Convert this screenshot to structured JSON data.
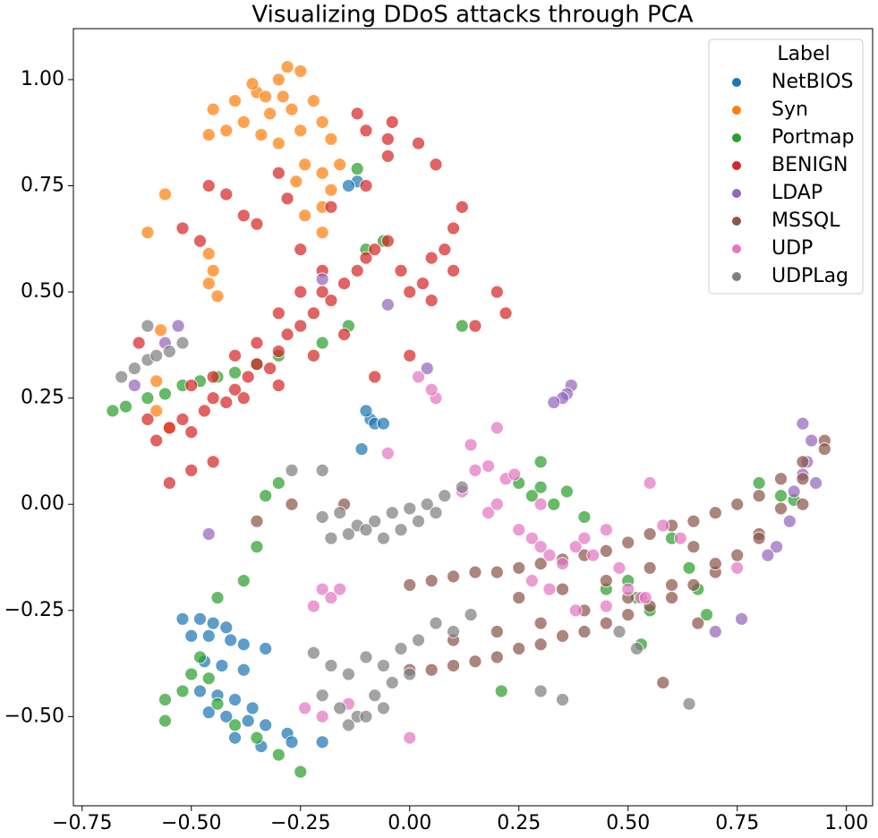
{
  "chart_data": {
    "type": "scatter",
    "title": "Visualizing DDoS attacks through PCA",
    "legend_title": "Label",
    "legend": "upper right",
    "xlim": [
      -0.77,
      1.06
    ],
    "ylim": [
      -0.71,
      1.12
    ],
    "xticks": [
      {
        "value": -0.75,
        "label": "−0.75"
      },
      {
        "value": -0.5,
        "label": "−0.50"
      },
      {
        "value": -0.25,
        "label": "−0.25"
      },
      {
        "value": 0,
        "label": "0.00"
      },
      {
        "value": 0.25,
        "label": "0.25"
      },
      {
        "value": 0.5,
        "label": "0.50"
      },
      {
        "value": 0.75,
        "label": "0.75"
      },
      {
        "value": 1,
        "label": "1.00"
      }
    ],
    "yticks": [
      {
        "value": -0.5,
        "label": "−0.50"
      },
      {
        "value": -0.25,
        "label": "−0.25"
      },
      {
        "value": 0,
        "label": "0.00"
      },
      {
        "value": 0.25,
        "label": "0.25"
      },
      {
        "value": 0.5,
        "label": "0.50"
      },
      {
        "value": 0.75,
        "label": "0.75"
      },
      {
        "value": 1,
        "label": "1.00"
      }
    ],
    "series": [
      {
        "name": "NetBIOS",
        "color": "#1f77b4",
        "x": [
          -0.52,
          -0.48,
          -0.45,
          -0.42,
          -0.5,
          -0.46,
          -0.41,
          -0.38,
          -0.33,
          -0.47,
          -0.43,
          -0.38,
          -0.48,
          -0.44,
          -0.4,
          -0.36,
          -0.46,
          -0.42,
          -0.37,
          -0.33,
          -0.28,
          -0.4,
          -0.34,
          -0.27,
          -0.2,
          -0.09,
          -0.08,
          -0.06,
          -0.1,
          -0.11,
          -0.12,
          -0.14
        ],
        "values": [
          -0.27,
          -0.27,
          -0.28,
          -0.29,
          -0.31,
          -0.31,
          -0.32,
          -0.33,
          -0.34,
          -0.37,
          -0.38,
          -0.39,
          -0.44,
          -0.45,
          -0.46,
          -0.48,
          -0.49,
          -0.5,
          -0.51,
          -0.52,
          -0.54,
          -0.55,
          -0.57,
          -0.56,
          -0.56,
          0.2,
          0.19,
          0.19,
          0.22,
          0.13,
          0.76,
          0.75
        ]
      },
      {
        "name": "Syn",
        "color": "#ff7f0e",
        "x": [
          -0.45,
          -0.4,
          -0.35,
          -0.3,
          -0.28,
          -0.25,
          -0.32,
          -0.27,
          -0.22,
          -0.38,
          -0.34,
          -0.3,
          -0.25,
          -0.2,
          -0.18,
          -0.24,
          -0.2,
          -0.16,
          -0.26,
          -0.2,
          -0.18,
          -0.24,
          -0.2,
          -0.42,
          -0.46,
          -0.56,
          -0.6,
          -0.46,
          -0.46,
          -0.45,
          -0.44,
          -0.58,
          -0.58,
          -0.55,
          -0.57,
          -0.33,
          -0.36,
          -0.29
        ],
        "values": [
          0.93,
          0.95,
          0.97,
          1.0,
          1.03,
          1.02,
          0.92,
          0.93,
          0.95,
          0.9,
          0.87,
          0.85,
          0.88,
          0.9,
          0.86,
          0.8,
          0.78,
          0.8,
          0.76,
          0.7,
          0.74,
          0.68,
          0.64,
          0.88,
          0.87,
          0.73,
          0.64,
          0.59,
          0.52,
          0.55,
          0.49,
          0.29,
          0.22,
          0.18,
          0.41,
          0.96,
          0.99,
          0.96
        ]
      },
      {
        "name": "Portmap",
        "color": "#2ca02c",
        "x": [
          -0.68,
          -0.65,
          -0.6,
          -0.56,
          -0.52,
          -0.48,
          -0.44,
          -0.4,
          -0.35,
          -0.3,
          -0.2,
          -0.14,
          -0.1,
          -0.12,
          -0.06,
          0.12,
          0.25,
          0.28,
          0.3,
          0.33,
          0.36,
          0.3,
          0.4,
          0.45,
          0.5,
          0.52,
          0.55,
          0.6,
          0.64,
          0.66,
          0.68,
          0.8,
          0.85,
          0.88,
          -0.56,
          -0.56,
          -0.52,
          -0.5,
          -0.48,
          -0.46,
          -0.44,
          -0.4,
          -0.35,
          -0.3,
          -0.25,
          -0.38,
          -0.35,
          -0.33,
          -0.3,
          -0.44,
          0.21,
          0.53
        ],
        "values": [
          0.22,
          0.23,
          0.25,
          0.26,
          0.28,
          0.29,
          0.3,
          0.31,
          0.33,
          0.35,
          0.38,
          0.42,
          0.6,
          0.79,
          0.62,
          0.42,
          0.05,
          0.02,
          0.04,
          0.0,
          0.03,
          0.1,
          -0.03,
          -0.2,
          -0.18,
          -0.22,
          -0.25,
          -0.08,
          -0.15,
          -0.2,
          -0.26,
          0.05,
          0.02,
          0.01,
          -0.51,
          -0.46,
          -0.44,
          -0.4,
          -0.36,
          -0.41,
          -0.47,
          -0.52,
          -0.55,
          -0.59,
          -0.63,
          -0.18,
          -0.1,
          0.02,
          0.05,
          -0.22,
          -0.44,
          -0.33
        ]
      },
      {
        "name": "BENIGN",
        "color": "#d62728",
        "x": [
          -0.58,
          -0.55,
          -0.52,
          -0.5,
          -0.47,
          -0.45,
          -0.42,
          -0.4,
          -0.37,
          -0.35,
          -0.32,
          -0.3,
          -0.28,
          -0.25,
          -0.22,
          -0.2,
          -0.18,
          -0.15,
          -0.12,
          -0.1,
          -0.08,
          -0.05,
          -0.02,
          0.0,
          0.03,
          0.05,
          0.08,
          0.1,
          0.12,
          -0.5,
          -0.45,
          -0.4,
          -0.35,
          -0.3,
          -0.25,
          -0.2,
          -0.38,
          -0.3,
          -0.22,
          -0.15,
          -0.1,
          -0.05,
          0.02,
          -0.25,
          -0.18,
          -0.1,
          -0.04,
          -0.45,
          -0.5,
          -0.55,
          -0.6,
          -0.52,
          -0.48,
          -0.42,
          -0.28,
          -0.08,
          0.0,
          0.05,
          0.2,
          0.22,
          0.06,
          -0.46,
          -0.38,
          -0.62,
          -0.12,
          -0.05,
          0.1,
          0.15,
          -0.3,
          -0.35
        ],
        "values": [
          0.15,
          0.18,
          0.2,
          0.17,
          0.22,
          0.25,
          0.24,
          0.27,
          0.3,
          0.33,
          0.32,
          0.36,
          0.4,
          0.42,
          0.45,
          0.5,
          0.48,
          0.52,
          0.55,
          0.58,
          0.6,
          0.62,
          0.55,
          0.5,
          0.52,
          0.58,
          0.6,
          0.55,
          0.7,
          0.28,
          0.3,
          0.35,
          0.38,
          0.45,
          0.5,
          0.55,
          0.25,
          0.28,
          0.35,
          0.4,
          0.75,
          0.82,
          0.85,
          0.6,
          0.7,
          0.88,
          0.9,
          0.1,
          0.08,
          0.05,
          0.2,
          0.65,
          0.62,
          0.73,
          0.72,
          0.3,
          0.35,
          0.48,
          0.5,
          0.45,
          0.8,
          0.75,
          0.68,
          0.38,
          0.92,
          0.86,
          0.65,
          0.42,
          0.78,
          0.66
        ]
      },
      {
        "name": "LDAP",
        "color": "#9467bd",
        "x": [
          0.37,
          0.36,
          0.35,
          0.33,
          0.9,
          0.92,
          0.91,
          0.9,
          0.93,
          0.88,
          0.87,
          0.84,
          0.82,
          0.76,
          0.7,
          -0.46,
          -0.63,
          -0.56,
          -0.53,
          -0.2,
          0.04,
          -0.05
        ],
        "values": [
          0.28,
          0.26,
          0.25,
          0.24,
          0.19,
          0.15,
          0.1,
          0.07,
          0.05,
          0.03,
          -0.04,
          -0.1,
          -0.12,
          -0.27,
          -0.3,
          -0.07,
          0.28,
          0.38,
          0.42,
          0.53,
          0.32,
          0.47
        ]
      },
      {
        "name": "MSSQL",
        "color": "#8c564b",
        "x": [
          0.0,
          0.05,
          0.1,
          0.15,
          0.2,
          0.25,
          0.3,
          0.35,
          0.4,
          0.45,
          0.5,
          0.55,
          0.6,
          0.65,
          0.7,
          0.75,
          0.8,
          0.85,
          0.9,
          0.95,
          0.0,
          0.05,
          0.1,
          0.15,
          0.2,
          0.25,
          0.3,
          0.35,
          0.4,
          0.45,
          0.5,
          0.55,
          0.6,
          0.65,
          0.7,
          0.75,
          0.8,
          0.85,
          0.9,
          0.95,
          0.1,
          0.2,
          0.3,
          0.4,
          0.5,
          0.6,
          0.7,
          0.8,
          0.9,
          0.25,
          0.35,
          0.45,
          0.55,
          0.65,
          -0.35,
          -0.27,
          -0.15,
          0.66,
          0.58
        ],
        "values": [
          -0.19,
          -0.18,
          -0.17,
          -0.16,
          -0.16,
          -0.15,
          -0.14,
          -0.13,
          -0.12,
          -0.11,
          -0.09,
          -0.07,
          -0.05,
          -0.04,
          -0.02,
          0.0,
          0.02,
          0.06,
          0.1,
          0.15,
          -0.39,
          -0.39,
          -0.38,
          -0.37,
          -0.36,
          -0.34,
          -0.33,
          -0.31,
          -0.3,
          -0.28,
          -0.26,
          -0.24,
          -0.22,
          -0.19,
          -0.16,
          -0.12,
          -0.07,
          -0.01,
          0.06,
          0.13,
          -0.32,
          -0.3,
          -0.28,
          -0.25,
          -0.22,
          -0.19,
          -0.14,
          -0.08,
          0.0,
          -0.22,
          -0.2,
          -0.18,
          -0.15,
          -0.1,
          -0.04,
          0.0,
          0.0,
          -0.28,
          -0.42
        ]
      },
      {
        "name": "UDP",
        "color": "#e377c2",
        "x": [
          0.18,
          0.2,
          0.25,
          0.28,
          0.3,
          0.32,
          0.35,
          0.38,
          0.4,
          0.42,
          0.45,
          0.48,
          0.5,
          0.53,
          0.38,
          0.32,
          0.28,
          0.45,
          0.22,
          0.15,
          0.12,
          0.18,
          0.24,
          0.3,
          0.58,
          0.54,
          0.06,
          0.05,
          0.02,
          -0.2,
          -0.22,
          -0.18,
          -0.16,
          -0.24,
          -0.14,
          -0.2,
          0.0,
          0.55,
          0.62,
          0.75,
          0.14,
          -0.05,
          0.2
        ],
        "values": [
          -0.02,
          0.0,
          -0.06,
          -0.08,
          -0.1,
          -0.12,
          -0.14,
          -0.1,
          -0.08,
          -0.12,
          -0.06,
          -0.15,
          -0.2,
          -0.22,
          -0.25,
          -0.2,
          -0.18,
          -0.24,
          0.06,
          0.08,
          0.03,
          0.09,
          0.07,
          0.0,
          -0.05,
          -0.22,
          0.25,
          0.27,
          0.3,
          -0.2,
          -0.24,
          -0.22,
          -0.2,
          -0.48,
          -0.47,
          -0.5,
          -0.55,
          0.05,
          -0.08,
          -0.15,
          0.14,
          0.12,
          0.18
        ]
      },
      {
        "name": "UDPLag",
        "color": "#7f7f7f",
        "x": [
          -0.2,
          -0.16,
          -0.12,
          -0.08,
          -0.04,
          0.0,
          0.04,
          0.08,
          0.12,
          -0.18,
          -0.14,
          -0.1,
          -0.06,
          -0.02,
          0.02,
          0.06,
          -0.22,
          -0.18,
          -0.14,
          -0.1,
          -0.06,
          -0.02,
          0.02,
          0.06,
          0.1,
          0.14,
          -0.2,
          -0.16,
          -0.12,
          -0.08,
          -0.04,
          0.0,
          -0.14,
          -0.1,
          -0.06,
          -0.66,
          -0.63,
          -0.6,
          -0.58,
          -0.55,
          -0.52,
          -0.6,
          0.3,
          0.35,
          0.48,
          0.52,
          0.64,
          -0.27,
          -0.2
        ],
        "values": [
          -0.03,
          -0.02,
          -0.05,
          -0.04,
          -0.02,
          -0.01,
          0.0,
          0.02,
          0.04,
          -0.08,
          -0.07,
          -0.06,
          -0.08,
          -0.06,
          -0.04,
          -0.02,
          -0.35,
          -0.38,
          -0.4,
          -0.36,
          -0.38,
          -0.34,
          -0.32,
          -0.28,
          -0.3,
          -0.26,
          -0.45,
          -0.48,
          -0.5,
          -0.45,
          -0.42,
          -0.4,
          -0.52,
          -0.5,
          -0.48,
          0.3,
          0.32,
          0.34,
          0.35,
          0.36,
          0.38,
          0.42,
          -0.44,
          -0.46,
          -0.3,
          -0.34,
          -0.47,
          0.08,
          0.08
        ]
      }
    ]
  }
}
